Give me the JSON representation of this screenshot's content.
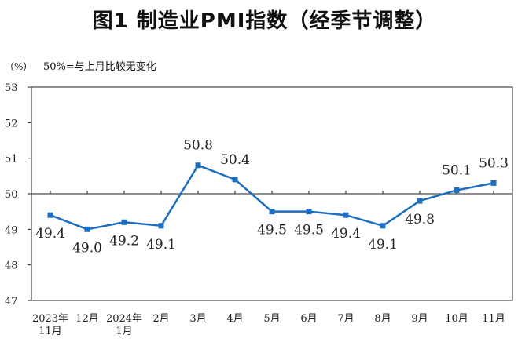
{
  "chart_data": {
    "type": "line",
    "title": "图1  制造业PMI指数（经季节调整）",
    "ylabel": "（%）",
    "reference_note": "50%=与上月比较无变化",
    "reference_value": 50,
    "ylim": [
      47,
      53
    ],
    "yticks": [
      "47",
      "48",
      "49",
      "50",
      "51",
      "52",
      "53"
    ],
    "categories": [
      [
        "2023年",
        "11月"
      ],
      [
        "12月"
      ],
      [
        "2024年",
        "1月"
      ],
      [
        "2月"
      ],
      [
        "3月"
      ],
      [
        "4月"
      ],
      [
        "5月"
      ],
      [
        "6月"
      ],
      [
        "7月"
      ],
      [
        "8月"
      ],
      [
        "9月"
      ],
      [
        "10月"
      ],
      [
        "11月"
      ]
    ],
    "series": [
      {
        "name": "制造业PMI",
        "color": "#1f6dbf",
        "values": [
          49.4,
          49.0,
          49.2,
          49.1,
          50.8,
          50.4,
          49.5,
          49.5,
          49.4,
          49.1,
          49.8,
          50.1,
          50.3
        ],
        "labels": [
          "49.4",
          "49.0",
          "49.2",
          "49.1",
          "50.8",
          "50.4",
          "49.5",
          "49.5",
          "49.4",
          "49.1",
          "49.8",
          "50.1",
          "50.3"
        ],
        "label_positions": [
          "below",
          "below",
          "below",
          "below",
          "above",
          "above",
          "below",
          "below",
          "below",
          "below",
          "below",
          "above",
          "above"
        ]
      }
    ],
    "grid": false
  }
}
